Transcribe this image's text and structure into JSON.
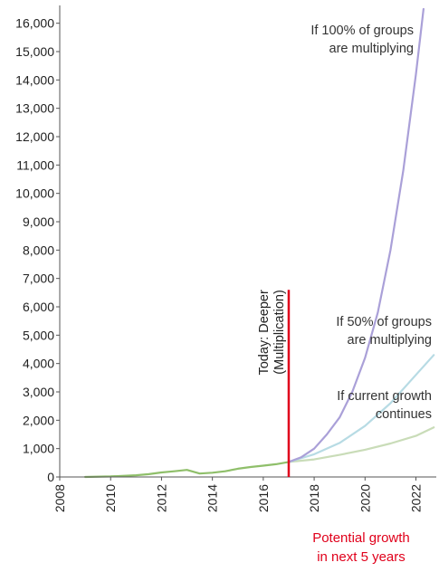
{
  "chart_data": {
    "type": "line",
    "title": "",
    "xlabel": "",
    "ylabel": "",
    "xlim": [
      2008,
      2022.8
    ],
    "ylim": [
      0,
      16500
    ],
    "x_ticks": [
      2008,
      2010,
      2012,
      2014,
      2016,
      2018,
      2020,
      2022
    ],
    "x_tick_labels": [
      "2008",
      "2010",
      "2012",
      "2014",
      "2016",
      "2018",
      "2020",
      "2022"
    ],
    "y_ticks": [
      0,
      1000,
      2000,
      3000,
      4000,
      5000,
      6000,
      7000,
      8000,
      9000,
      10000,
      11000,
      12000,
      13000,
      14000,
      15000,
      16000
    ],
    "y_tick_labels": [
      "0",
      "1,000",
      "2,000",
      "3,000",
      "4,000",
      "5,000",
      "6,000",
      "7,000",
      "8,000",
      "9,000",
      "10,000",
      "11,000",
      "12,000",
      "13,000",
      "14,000",
      "15,000",
      "16,000"
    ],
    "series": [
      {
        "name": "",
        "color": "#8fbf6a",
        "x": [
          2009,
          2010,
          2011,
          2011.5,
          2012,
          2012.5,
          2013,
          2013.5,
          2014,
          2014.5,
          2015,
          2015.5,
          2016,
          2016.5,
          2017
        ],
        "y": [
          0,
          20,
          60,
          100,
          160,
          200,
          250,
          120,
          150,
          200,
          290,
          350,
          400,
          450,
          530
        ]
      },
      {
        "name": "If current growth continues",
        "color": "#c9dcb8",
        "x": [
          2017,
          2018,
          2019,
          2020,
          2021,
          2022,
          2022.7
        ],
        "y": [
          530,
          620,
          780,
          960,
          1180,
          1450,
          1750
        ]
      },
      {
        "name": "If 50% of groups are multiplying",
        "color": "#b7dbe4",
        "x": [
          2017,
          2018,
          2019,
          2020,
          2021,
          2022,
          2022.7
        ],
        "y": [
          530,
          800,
          1200,
          1800,
          2600,
          3600,
          4300
        ]
      },
      {
        "name": "If 100% of groups are multiplying",
        "color": "#aaa0d8",
        "x": [
          2017,
          2017.5,
          2018,
          2018.5,
          2019,
          2019.5,
          2020,
          2020.5,
          2021,
          2021.5,
          2022,
          2022.3
        ],
        "y": [
          530,
          700,
          1000,
          1500,
          2100,
          3000,
          4200,
          5800,
          8000,
          10800,
          14200,
          16500
        ]
      }
    ],
    "marker": {
      "x": 2017,
      "y_top": 6600,
      "color": "#e0001b",
      "label": "Today: Deeper (Multiplication)"
    },
    "annotations": [
      {
        "lines": [
          "If 100% of groups",
          "are multiplying"
        ],
        "color": "#333333"
      },
      {
        "lines": [
          "If 50% of groups",
          "are multiplying"
        ],
        "color": "#333333"
      },
      {
        "lines": [
          "If current growth",
          "continues"
        ],
        "color": "#333333"
      }
    ],
    "footer": {
      "lines": [
        "Potential growth",
        "in next 5 years"
      ],
      "color": "#e0001b"
    },
    "axis_color": "#555555",
    "grid": false
  }
}
